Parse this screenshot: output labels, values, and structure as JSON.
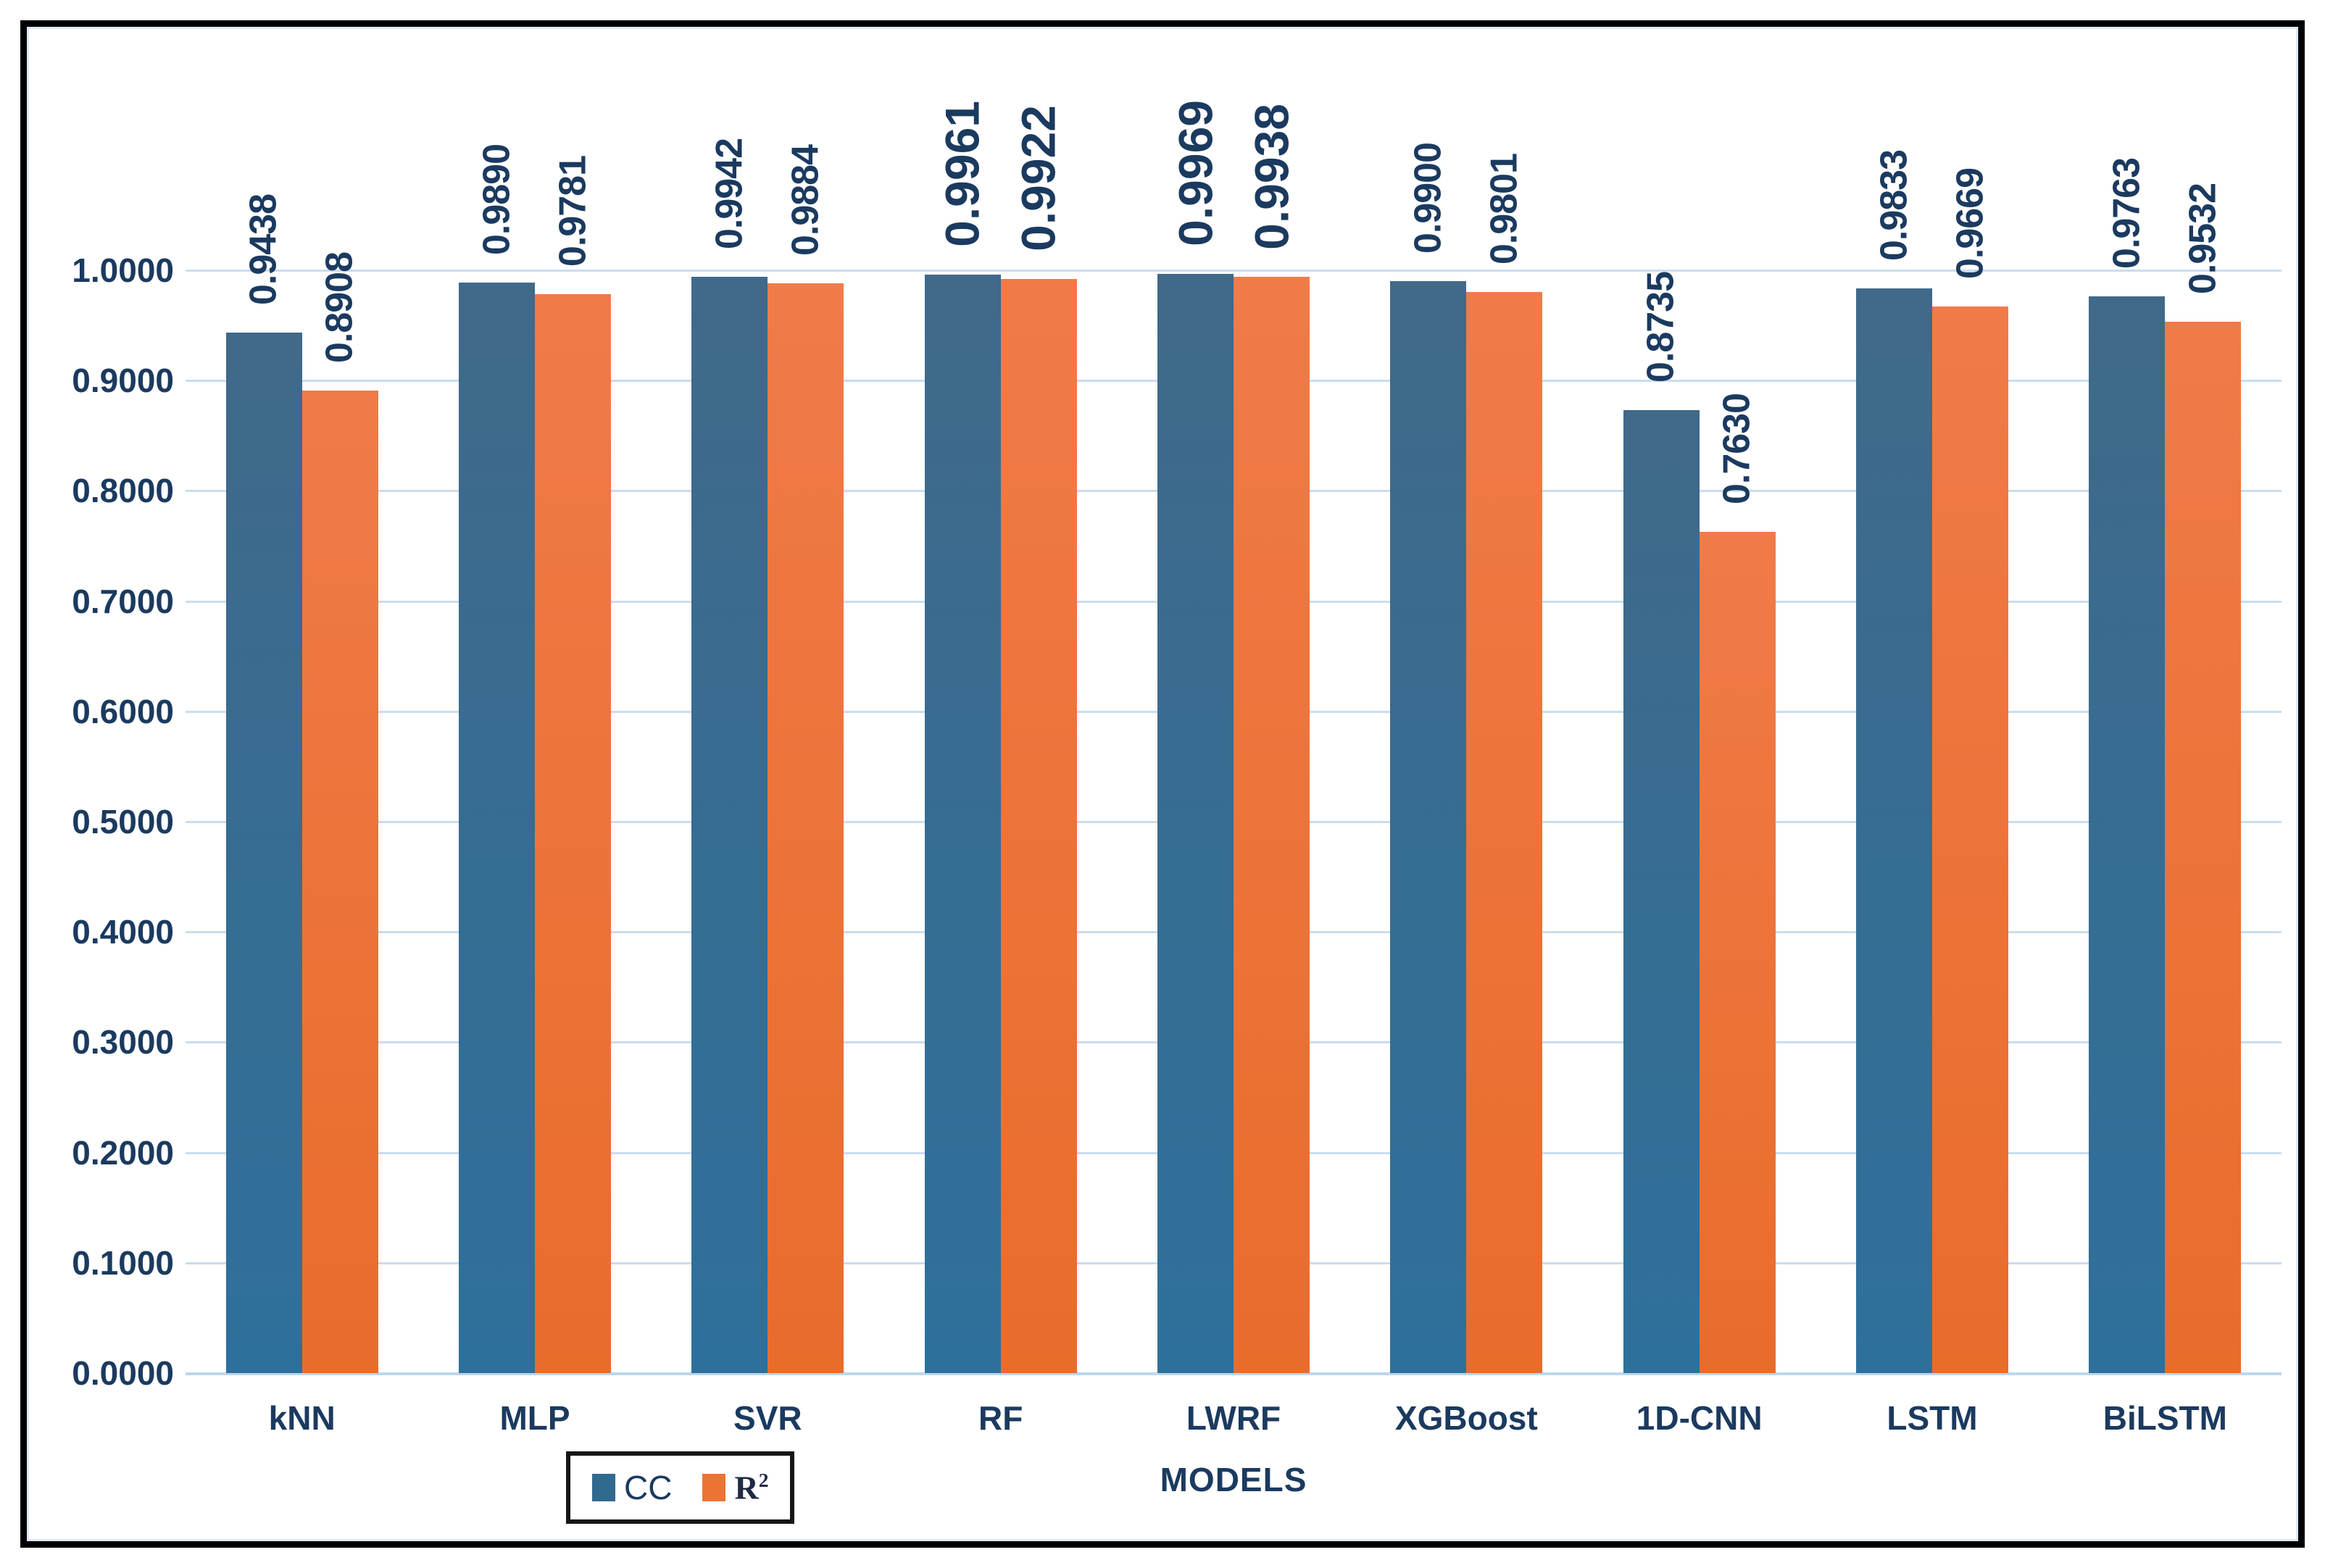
{
  "chart_data": {
    "type": "bar",
    "title": "",
    "categories": [
      "kNN",
      "MLP",
      "SVR",
      "RF",
      "LWRF",
      "XGBoost",
      "1D-CNN",
      "LSTM",
      "BiLSTM"
    ],
    "series": [
      {
        "name": "CC",
        "label_base": "CC",
        "label_superscript": "",
        "color": "#31698f",
        "values": [
          0.9438,
          0.989,
          0.9942,
          0.9961,
          0.9969,
          0.99,
          0.8735,
          0.9833,
          0.9763
        ]
      },
      {
        "name": "R²",
        "label_base": "R",
        "label_superscript": "2",
        "color": "#ed7334",
        "values": [
          0.8908,
          0.9781,
          0.9884,
          0.9922,
          0.9938,
          0.9801,
          0.763,
          0.9669,
          0.9532
        ]
      }
    ],
    "value_label_decimals": 4,
    "emphasized_categories": [
      "RF",
      "LWRF"
    ],
    "xlabel": "MODELS",
    "ylabel": "",
    "ylim": [
      0,
      1
    ],
    "ytick_step": 0.1,
    "ytick_labels": [
      "0.0000",
      "0.1000",
      "0.2000",
      "0.3000",
      "0.4000",
      "0.5000",
      "0.6000",
      "0.7000",
      "0.8000",
      "0.9000",
      "1.0000"
    ],
    "grid": true,
    "legend_position": "bottom-left",
    "colors": {
      "cc_bar": "#31698f",
      "r2_bar": "#ed7334",
      "text_navy": "#1b3a5f",
      "gridline": "#c9ddf0",
      "frame_border": "#000000",
      "legend_border": "#161616"
    }
  }
}
